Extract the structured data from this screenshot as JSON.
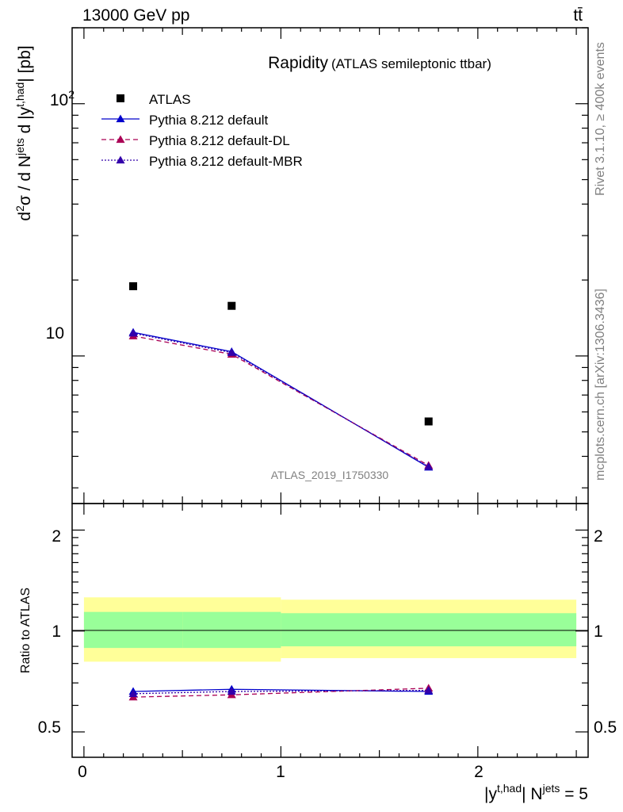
{
  "header": {
    "energy_label": "13000 GeV pp",
    "process_label": "tt̄",
    "side_label_top": "Rivet 3.1.10, ≥ 400k events",
    "side_label_bottom": "mcplots.cern.ch [arXiv:1306.3436]"
  },
  "chart_data": [
    {
      "type": "line",
      "panel": "main",
      "title": "Rapidity",
      "subtitle": "(ATLAS semileptonic ttbar)",
      "analysis_label": "ATLAS_2019_I1750330",
      "yscale": "log",
      "ylabel": "d²σ / d N^jets d |y^t,had| [pb]",
      "ylim": [
        2.6,
        200
      ],
      "xlim": [
        -0.06,
        2.56
      ],
      "ytick_labels": [
        "10",
        "10²"
      ],
      "ytick_values": [
        10,
        100
      ],
      "legend_position": "top-left",
      "series": [
        {
          "name": "ATLAS",
          "marker": "square",
          "color": "#000000",
          "x": [
            0.25,
            0.75,
            1.75
          ],
          "y": [
            18.9,
            15.8,
            5.5
          ]
        },
        {
          "name": "Pythia 8.212 default",
          "marker": "triangle",
          "line": "solid",
          "color": "#0000cc",
          "x": [
            0.25,
            0.75,
            1.75
          ],
          "y": [
            12.4,
            10.4,
            3.62
          ]
        },
        {
          "name": "Pythia 8.212 default-DL",
          "marker": "triangle",
          "line": "dashed",
          "color": "#aa0055",
          "x": [
            0.25,
            0.75,
            1.75
          ],
          "y": [
            12.0,
            10.15,
            3.68
          ]
        },
        {
          "name": "Pythia 8.212 default-MBR",
          "marker": "triangle",
          "line": "dotted",
          "color": "#3300aa",
          "x": [
            0.25,
            0.75,
            1.75
          ],
          "y": [
            12.3,
            10.3,
            3.64
          ]
        }
      ]
    },
    {
      "type": "line",
      "panel": "ratio",
      "ylabel": "Ratio to ATLAS",
      "xlabel": "|y^t,had| N^jets = 5",
      "yscale": "log",
      "ylim": [
        0.42,
        2.4
      ],
      "xlim": [
        -0.06,
        2.56
      ],
      "xtick_labels": [
        "0",
        "1",
        "2"
      ],
      "xtick_values": [
        0,
        1,
        2
      ],
      "ytick_labels": [
        "0.5",
        "1",
        "2"
      ],
      "ytick_values": [
        0.5,
        1,
        2
      ],
      "bands": [
        {
          "name": "stat+syst (outer)",
          "color": "#ffff99",
          "bins": [
            [
              0,
              1,
              0.81,
              1.26
            ],
            [
              1,
              2.5,
              0.83,
              1.24
            ]
          ]
        },
        {
          "name": "stat (inner)",
          "color": "#99ff99",
          "bins": [
            [
              0,
              0.5,
              0.89,
              1.14
            ],
            [
              0.5,
              1,
              0.89,
              1.14
            ],
            [
              1,
              2.5,
              0.9,
              1.13
            ]
          ]
        }
      ],
      "series": [
        {
          "name": "Pythia 8.212 default",
          "color": "#0000cc",
          "x": [
            0.25,
            0.75,
            1.75
          ],
          "y": [
            0.66,
            0.67,
            0.66
          ]
        },
        {
          "name": "Pythia 8.212 default-DL",
          "color": "#aa0055",
          "x": [
            0.25,
            0.75,
            1.75
          ],
          "y": [
            0.635,
            0.645,
            0.675
          ]
        },
        {
          "name": "Pythia 8.212 default-MBR",
          "color": "#3300aa",
          "x": [
            0.25,
            0.75,
            1.75
          ],
          "y": [
            0.65,
            0.66,
            0.665
          ]
        }
      ]
    }
  ]
}
